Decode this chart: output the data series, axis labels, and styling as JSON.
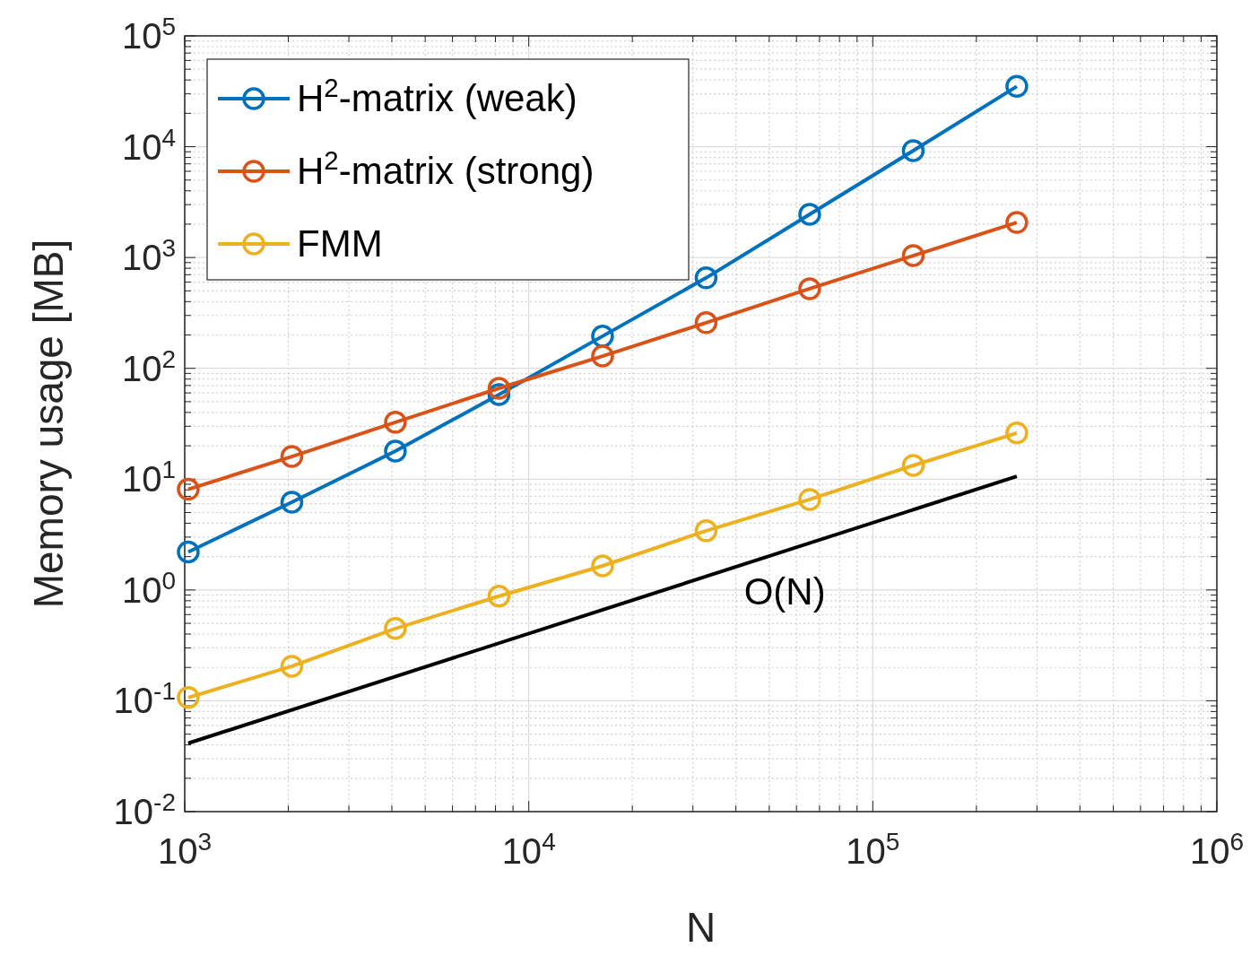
{
  "chart_data": {
    "type": "line",
    "xlabel": "N",
    "ylabel": "Memory usage [MB]",
    "log": "xy",
    "grid": true,
    "legend": "top left",
    "marker": "circle",
    "line_style": "solid",
    "x": [
      1024,
      2048,
      4096,
      8192,
      16384,
      32768,
      65536,
      131072,
      262144
    ],
    "xlim": [
      1000,
      1000000
    ],
    "ylim": [
      0.01,
      100000
    ],
    "xticks": [
      {
        "value": 1000,
        "label": "10$^{3}$"
      },
      {
        "value": 10000,
        "label": "10$^{4}$"
      },
      {
        "value": 100000,
        "label": "10$^{5}$"
      },
      {
        "value": 1000000,
        "label": "10$^{6}$"
      }
    ],
    "yticks": [
      {
        "value": 0.01,
        "label": "10$^{-2}$"
      },
      {
        "value": 0.1,
        "label": "10$^{-1}$"
      },
      {
        "value": 1,
        "label": "10$^{0}$"
      },
      {
        "value": 10,
        "label": "10$^{1}$"
      },
      {
        "value": 100,
        "label": "10$^{2}$"
      },
      {
        "value": 1000,
        "label": "10$^{3}$"
      },
      {
        "value": 10000,
        "label": "10$^{4}$"
      },
      {
        "value": 100000,
        "label": "10$^{5}$"
      }
    ],
    "series": [
      {
        "name": "H$^{2}$-matrix (weak)",
        "color": "#0072bd",
        "values": [
          2.2,
          6.2,
          17.9,
          58,
          195,
          655,
          2450,
          9200,
          35000
        ]
      },
      {
        "name": "H$^{2}$-matrix (strong)",
        "color": "#d95319",
        "values": [
          8.1,
          16,
          32.6,
          66,
          129,
          258,
          523,
          1040,
          2070
        ]
      },
      {
        "name": "FMM",
        "color": "#edb120",
        "values": [
          0.107,
          0.205,
          0.449,
          0.88,
          1.65,
          3.42,
          6.56,
          13.3,
          26.1
        ]
      },
      {
        "color": "#000000",
        "marker": "none",
        "x": [
          1024,
          262144
        ],
        "values": [
          0.0414,
          10.6
        ]
      }
    ],
    "annotations": [
      "O(N)"
    ]
  }
}
